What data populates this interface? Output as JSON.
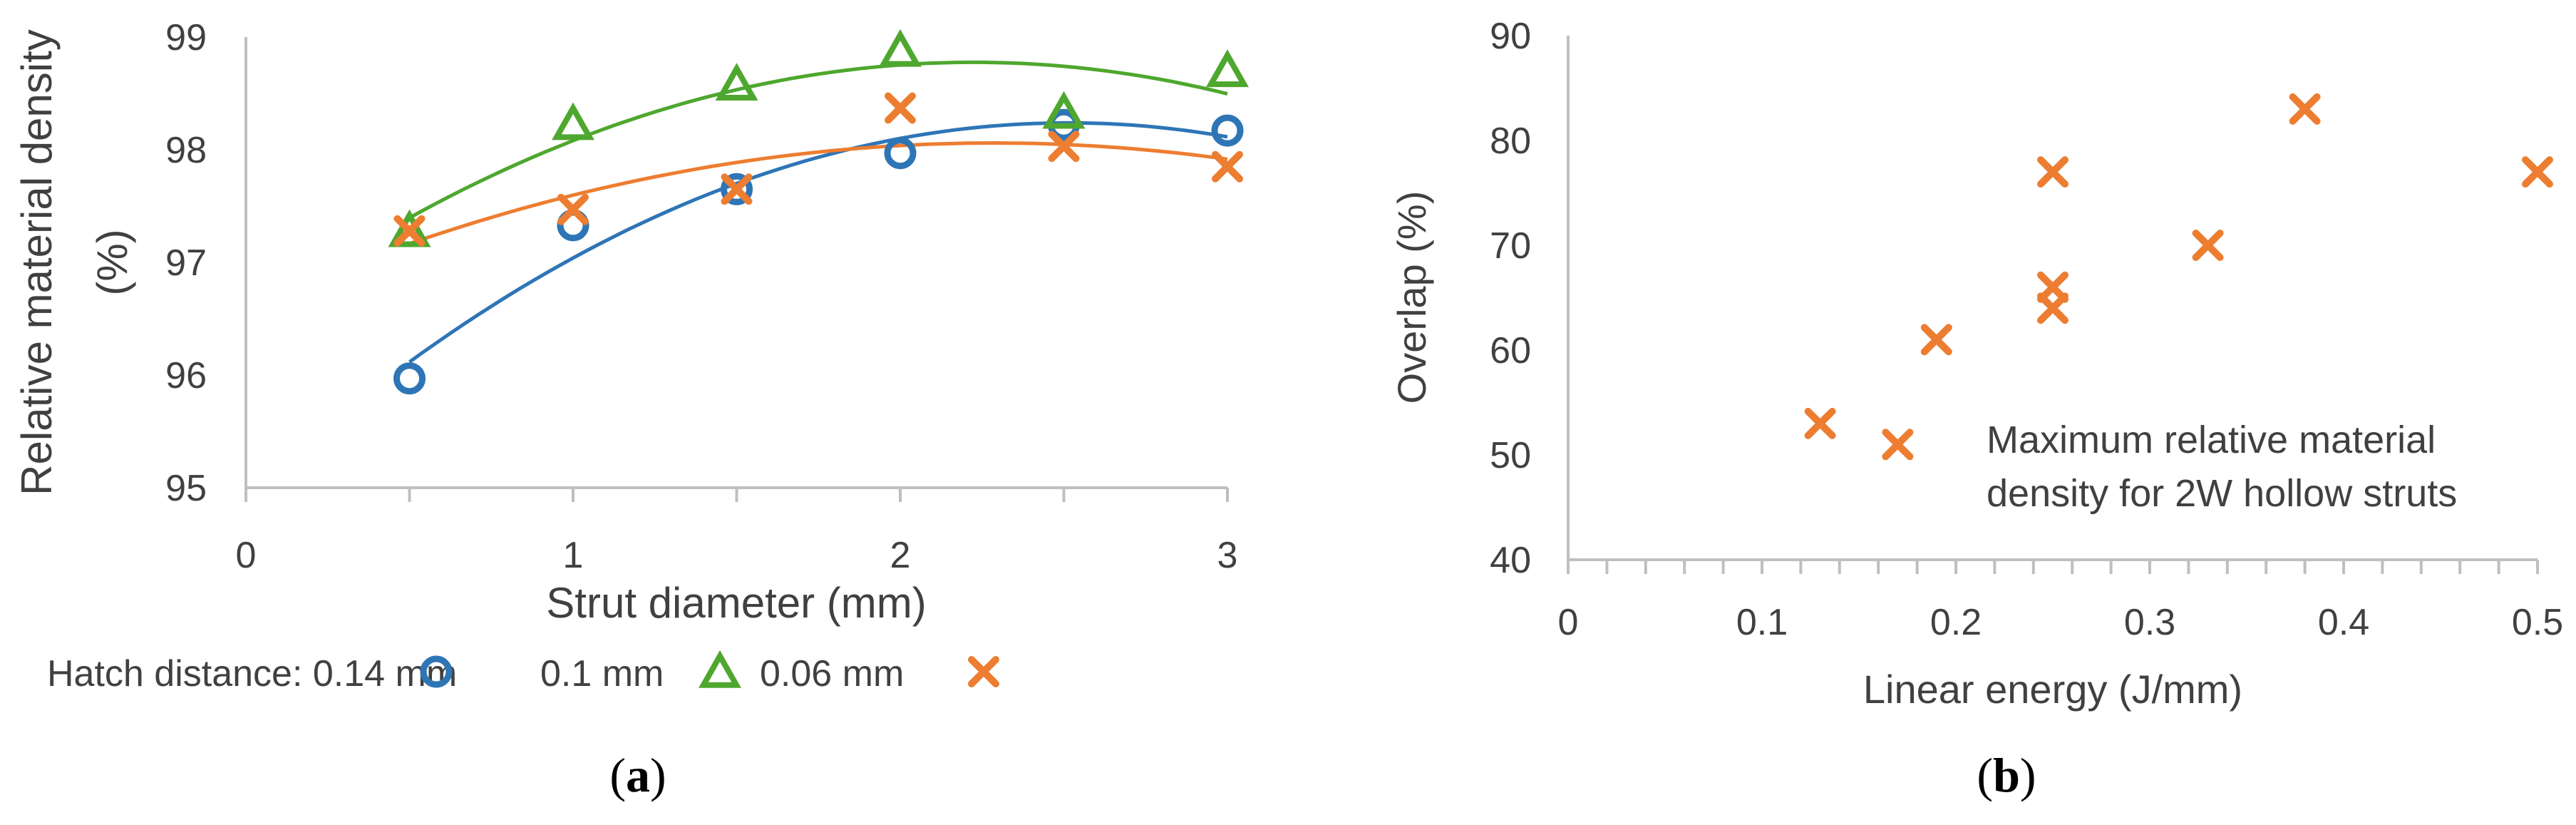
{
  "chart_data": [
    {
      "type": "scatter",
      "panel_label_open": "(",
      "panel_label_letter": "a",
      "panel_label_close": ")",
      "xlabel": "Strut diameter (mm)",
      "ylabel": [
        "Relative material density",
        "(%)"
      ],
      "xlim": [
        0,
        3
      ],
      "ylim": [
        95,
        99
      ],
      "xticks": [
        0,
        1,
        2,
        3
      ],
      "yticks": [
        95,
        96,
        97,
        98,
        99
      ],
      "legend_prefix": "Hatch distance: ",
      "series": [
        {
          "name": "0.14 mm",
          "marker": "circle",
          "color": "#2E75B6",
          "x": [
            0.5,
            1,
            1.5,
            2,
            2.5,
            3
          ],
          "y": [
            95.97,
            97.33,
            97.65,
            97.97,
            98.22,
            98.17
          ],
          "trendline": "polynomial-2"
        },
        {
          "name": "0.1 mm",
          "marker": "triangle",
          "color": "#4EA72E",
          "x": [
            0.5,
            1,
            1.5,
            2,
            2.5,
            3
          ],
          "y": [
            97.28,
            98.23,
            98.58,
            98.88,
            98.33,
            98.7
          ],
          "trendline": "polynomial-2"
        },
        {
          "name": "0.06 mm",
          "marker": "cross",
          "color": "#ED7D31",
          "x": [
            0.5,
            1,
            1.5,
            2,
            2.5,
            3
          ],
          "y": [
            97.28,
            97.47,
            97.65,
            98.37,
            98.03,
            97.85
          ],
          "trendline": "polynomial-2"
        }
      ]
    },
    {
      "type": "scatter",
      "panel_label_open": "(",
      "panel_label_letter": "b",
      "panel_label_close": ")",
      "xlabel": "Linear energy (J/mm)",
      "ylabel": "Overlap (%)",
      "xlim": [
        0,
        0.5
      ],
      "ylim": [
        40,
        90
      ],
      "xticks": [
        0,
        0.1,
        0.2,
        0.3,
        0.4,
        0.5
      ],
      "yticks": [
        40,
        50,
        60,
        70,
        80,
        90
      ],
      "annotation": [
        "Maximum relative material",
        "density for 2W hollow struts"
      ],
      "series": [
        {
          "name": "Overlap",
          "marker": "cross",
          "color": "#ED7D31",
          "x": [
            0.13,
            0.17,
            0.19,
            0.25,
            0.25,
            0.25,
            0.33,
            0.38,
            0.5
          ],
          "y": [
            53,
            51,
            61,
            77,
            66,
            64,
            70,
            83,
            77
          ]
        }
      ]
    }
  ]
}
